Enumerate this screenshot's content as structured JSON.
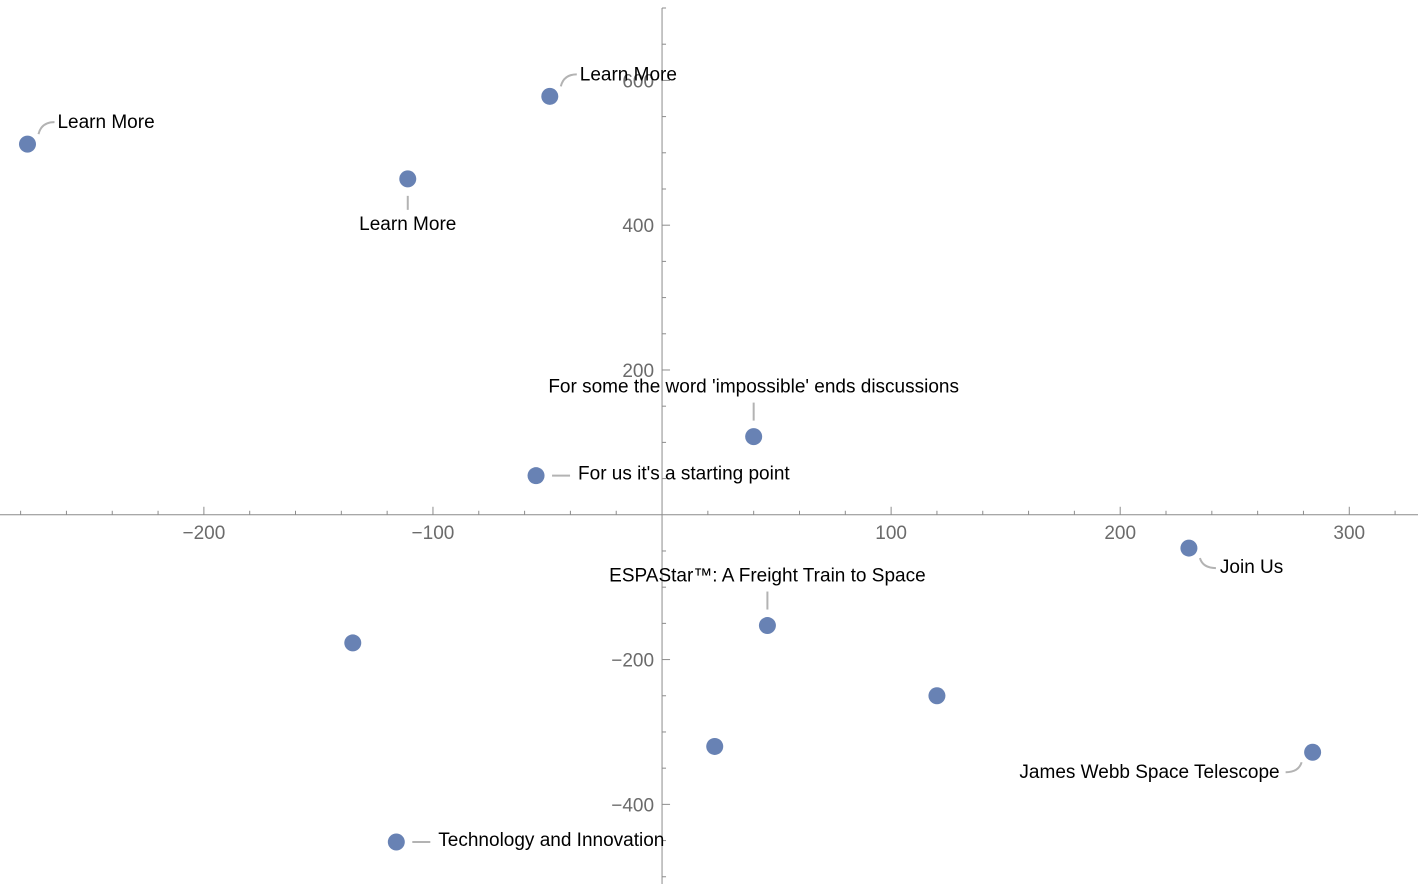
{
  "chart_data": {
    "type": "scatter",
    "title": "",
    "xlabel": "",
    "ylabel": "",
    "xlim": [
      -289,
      330
    ],
    "ylim": [
      -510,
      700
    ],
    "grid": false,
    "axes_origin": [
      0,
      0
    ],
    "x_ticks": [
      -200,
      -100,
      100,
      200,
      300
    ],
    "x_minor_step": 20,
    "y_ticks": [
      -400,
      -200,
      200,
      400,
      600
    ],
    "y_minor_step": 50,
    "marker_color": "#6882b4",
    "leader_color": "#b3b3b3",
    "points": [
      {
        "x": -277,
        "y": 512,
        "label": "Learn More",
        "label_pos": "upper-right"
      },
      {
        "x": -49,
        "y": 578,
        "label": "Learn More",
        "label_pos": "upper-right"
      },
      {
        "x": -111,
        "y": 464,
        "label": "Learn More",
        "label_pos": "below"
      },
      {
        "x": 40,
        "y": 108,
        "label": "For some the word 'impossible' ends discussions",
        "label_pos": "above"
      },
      {
        "x": -55,
        "y": 54,
        "label": "For us it's a starting point",
        "label_pos": "right"
      },
      {
        "x": 230,
        "y": -46,
        "label": "Join Us",
        "label_pos": "lower-right"
      },
      {
        "x": 46,
        "y": -153,
        "label": "ESPAStar™: A Freight Train to Space",
        "label_pos": "above"
      },
      {
        "x": -135,
        "y": -177,
        "label": "",
        "label_pos": "none"
      },
      {
        "x": 120,
        "y": -250,
        "label": "",
        "label_pos": "none"
      },
      {
        "x": 23,
        "y": -320,
        "label": "",
        "label_pos": "none"
      },
      {
        "x": 284,
        "y": -328,
        "label": "James Webb Space Telescope",
        "label_pos": "lower-left"
      },
      {
        "x": -116,
        "y": -452,
        "label": "Technology and Innovation",
        "label_pos": "right"
      }
    ]
  }
}
